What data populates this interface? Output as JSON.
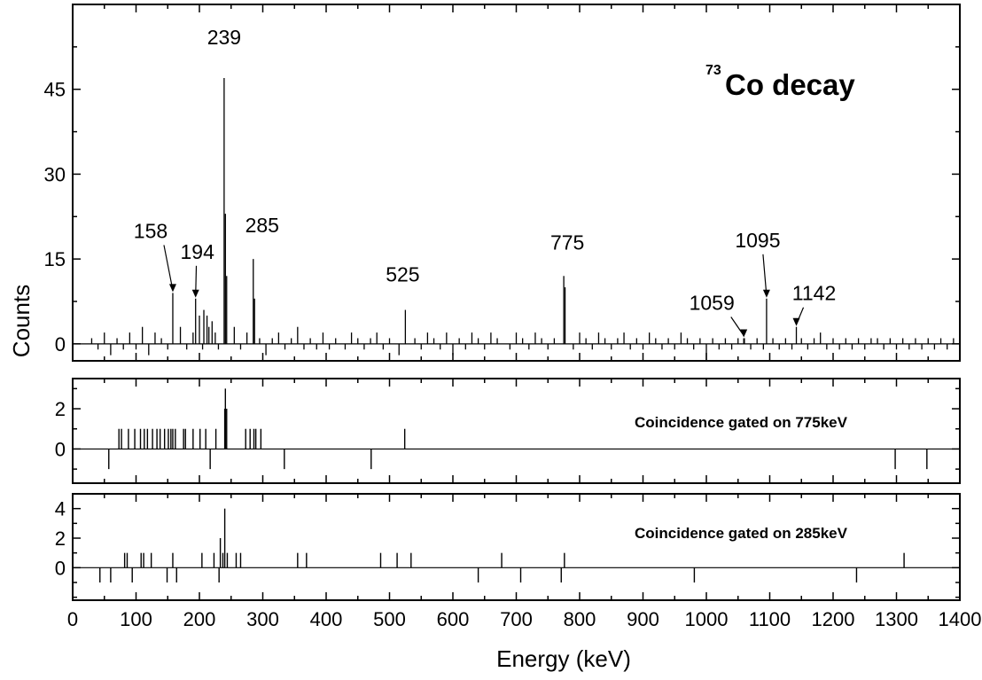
{
  "chart_data": [
    {
      "type": "histogram",
      "title_superscript": "73",
      "title": "Co decay",
      "ylabel": "Counts",
      "xlim": [
        0,
        1400
      ],
      "ylim": [
        -3,
        60
      ],
      "yticks": [
        0,
        15,
        30,
        45
      ],
      "spectrum": {
        "baseline": [
          [
            30,
            1
          ],
          [
            40,
            -1
          ],
          [
            50,
            2
          ],
          [
            60,
            -2
          ],
          [
            70,
            1
          ],
          [
            80,
            -1
          ],
          [
            90,
            2
          ],
          [
            100,
            -1
          ],
          [
            110,
            3
          ],
          [
            120,
            -2
          ],
          [
            130,
            2
          ],
          [
            140,
            1
          ],
          [
            150,
            -1
          ],
          [
            170,
            3
          ],
          [
            180,
            -1
          ],
          [
            190,
            2
          ],
          [
            205,
            -1
          ],
          [
            215,
            3
          ],
          [
            225,
            2
          ],
          [
            230,
            -1
          ],
          [
            255,
            3
          ],
          [
            265,
            -1
          ],
          [
            275,
            2
          ],
          [
            295,
            1
          ],
          [
            305,
            -2
          ],
          [
            315,
            1
          ],
          [
            325,
            2
          ],
          [
            335,
            -1
          ],
          [
            345,
            1
          ],
          [
            355,
            3
          ],
          [
            365,
            -1
          ],
          [
            375,
            1
          ],
          [
            385,
            -1
          ],
          [
            395,
            2
          ],
          [
            405,
            -1
          ],
          [
            415,
            1
          ],
          [
            430,
            -1
          ],
          [
            440,
            2
          ],
          [
            450,
            1
          ],
          [
            460,
            -1
          ],
          [
            470,
            1
          ],
          [
            480,
            2
          ],
          [
            490,
            -1
          ],
          [
            500,
            1
          ],
          [
            515,
            -2
          ],
          [
            540,
            1
          ],
          [
            550,
            -1
          ],
          [
            560,
            2
          ],
          [
            570,
            1
          ],
          [
            580,
            -1
          ],
          [
            590,
            2
          ],
          [
            600,
            -2
          ],
          [
            610,
            1
          ],
          [
            620,
            -1
          ],
          [
            630,
            2
          ],
          [
            640,
            1
          ],
          [
            650,
            -1
          ],
          [
            660,
            2
          ],
          [
            670,
            1
          ],
          [
            690,
            -1
          ],
          [
            700,
            2
          ],
          [
            710,
            1
          ],
          [
            720,
            -1
          ],
          [
            730,
            2
          ],
          [
            740,
            1
          ],
          [
            750,
            -1
          ],
          [
            760,
            1
          ],
          [
            790,
            -1
          ],
          [
            800,
            2
          ],
          [
            810,
            1
          ],
          [
            820,
            -1
          ],
          [
            830,
            2
          ],
          [
            840,
            1
          ],
          [
            850,
            -1
          ],
          [
            860,
            1
          ],
          [
            870,
            2
          ],
          [
            880,
            -1
          ],
          [
            890,
            1
          ],
          [
            900,
            -1
          ],
          [
            910,
            2
          ],
          [
            920,
            1
          ],
          [
            930,
            -1
          ],
          [
            940,
            1
          ],
          [
            950,
            -1
          ],
          [
            960,
            2
          ],
          [
            970,
            1
          ],
          [
            980,
            -1
          ],
          [
            990,
            1
          ],
          [
            1000,
            -3
          ],
          [
            1010,
            1
          ],
          [
            1020,
            -1
          ],
          [
            1030,
            1
          ],
          [
            1040,
            -1
          ],
          [
            1050,
            1
          ],
          [
            1060,
            1
          ],
          [
            1070,
            -1
          ],
          [
            1080,
            1
          ],
          [
            1090,
            -1
          ],
          [
            1105,
            1
          ],
          [
            1115,
            -1
          ],
          [
            1125,
            1
          ],
          [
            1135,
            -1
          ],
          [
            1150,
            1
          ],
          [
            1160,
            -1
          ],
          [
            1170,
            1
          ],
          [
            1180,
            2
          ],
          [
            1190,
            -1
          ],
          [
            1200,
            1
          ],
          [
            1210,
            -1
          ],
          [
            1220,
            1
          ],
          [
            1230,
            -1
          ],
          [
            1240,
            1
          ],
          [
            1250,
            -1
          ],
          [
            1260,
            1
          ],
          [
            1270,
            1
          ],
          [
            1280,
            -1
          ],
          [
            1290,
            1
          ],
          [
            1300,
            -1
          ],
          [
            1310,
            1
          ],
          [
            1320,
            -1
          ],
          [
            1330,
            1
          ],
          [
            1340,
            -1
          ],
          [
            1350,
            1
          ],
          [
            1360,
            -1
          ],
          [
            1370,
            1
          ],
          [
            1380,
            -1
          ],
          [
            1390,
            1
          ]
        ],
        "peaks": [
          [
            158,
            9
          ],
          [
            194,
            8
          ],
          [
            200,
            5
          ],
          [
            207,
            6
          ],
          [
            212,
            5
          ],
          [
            220,
            4
          ],
          [
            239,
            47
          ],
          [
            241,
            23
          ],
          [
            243,
            12
          ],
          [
            285,
            15
          ],
          [
            287,
            8
          ],
          [
            525,
            6
          ],
          [
            775,
            12
          ],
          [
            777,
            10
          ],
          [
            1059,
            1
          ],
          [
            1095,
            8
          ],
          [
            1142,
            3
          ]
        ]
      },
      "peak_labels": [
        {
          "text": "239",
          "x": 239,
          "y": 47
        },
        {
          "text": "158",
          "x": 158,
          "y": 9
        },
        {
          "text": "194",
          "x": 194,
          "y": 8
        },
        {
          "text": "285",
          "x": 285,
          "y": 15
        },
        {
          "text": "525",
          "x": 525,
          "y": 6
        },
        {
          "text": "775",
          "x": 775,
          "y": 12
        },
        {
          "text": "1059",
          "x": 1059,
          "y": 1
        },
        {
          "text": "1095",
          "x": 1095,
          "y": 8
        },
        {
          "text": "1142",
          "x": 1142,
          "y": 3
        }
      ]
    },
    {
      "type": "histogram",
      "annotation": "Coincidence gated on 775keV",
      "ylim": [
        -1.7,
        3.5
      ],
      "yticks": [
        0,
        2
      ],
      "events": [
        [
          57,
          -1
        ],
        [
          73,
          1
        ],
        [
          77,
          1
        ],
        [
          88,
          1
        ],
        [
          98,
          1
        ],
        [
          107,
          1
        ],
        [
          113,
          1
        ],
        [
          118,
          1
        ],
        [
          126,
          1
        ],
        [
          133,
          1
        ],
        [
          138,
          1
        ],
        [
          145,
          1
        ],
        [
          151,
          1
        ],
        [
          155,
          1
        ],
        [
          158,
          1
        ],
        [
          162,
          1
        ],
        [
          175,
          1
        ],
        [
          178,
          1
        ],
        [
          190,
          1
        ],
        [
          201,
          1
        ],
        [
          210,
          1
        ],
        [
          217,
          -1
        ],
        [
          226,
          1
        ],
        [
          240,
          2
        ],
        [
          241,
          3
        ],
        [
          243,
          2
        ],
        [
          273,
          1
        ],
        [
          280,
          1
        ],
        [
          286,
          1
        ],
        [
          289,
          1
        ],
        [
          297,
          1
        ],
        [
          334,
          -1
        ],
        [
          471,
          -1
        ],
        [
          524,
          1
        ],
        [
          1298,
          -1
        ],
        [
          1348,
          -1
        ]
      ]
    },
    {
      "type": "histogram",
      "annotation": "Coincidence gated on 285keV",
      "ylim": [
        -2.2,
        5
      ],
      "yticks": [
        0,
        2,
        4
      ],
      "events": [
        [
          43,
          -1
        ],
        [
          60,
          -1
        ],
        [
          82,
          1
        ],
        [
          86,
          1
        ],
        [
          94,
          -1
        ],
        [
          108,
          1
        ],
        [
          112,
          1
        ],
        [
          124,
          1
        ],
        [
          149,
          -1
        ],
        [
          158,
          1
        ],
        [
          164,
          -1
        ],
        [
          204,
          1
        ],
        [
          223,
          1
        ],
        [
          231,
          -1
        ],
        [
          233,
          2
        ],
        [
          237,
          1
        ],
        [
          240,
          4
        ],
        [
          244,
          1
        ],
        [
          258,
          1
        ],
        [
          265,
          1
        ],
        [
          355,
          1
        ],
        [
          369,
          1
        ],
        [
          486,
          1
        ],
        [
          512,
          1
        ],
        [
          534,
          1
        ],
        [
          640,
          -1
        ],
        [
          677,
          1
        ],
        [
          707,
          -1
        ],
        [
          771,
          -1
        ],
        [
          776,
          1
        ],
        [
          981,
          -1
        ],
        [
          1237,
          -1
        ],
        [
          1312,
          1
        ]
      ]
    }
  ],
  "xaxis": {
    "label": "Energy (keV)",
    "ticks": [
      0,
      100,
      200,
      300,
      400,
      500,
      600,
      700,
      800,
      900,
      1000,
      1100,
      1200,
      1300,
      1400
    ]
  }
}
